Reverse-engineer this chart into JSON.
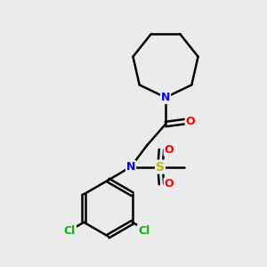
{
  "bg_color": "#ebebeb",
  "bond_color": "#000000",
  "bond_width": 1.8,
  "N_color": "#0000FF",
  "O_color": "#FF0000",
  "S_color": "#BBBB00",
  "Cl_color": "#00BB00",
  "fig_size": [
    3.0,
    3.0
  ],
  "dpi": 100,
  "xlim": [
    0,
    10
  ],
  "ylim": [
    0,
    10
  ]
}
